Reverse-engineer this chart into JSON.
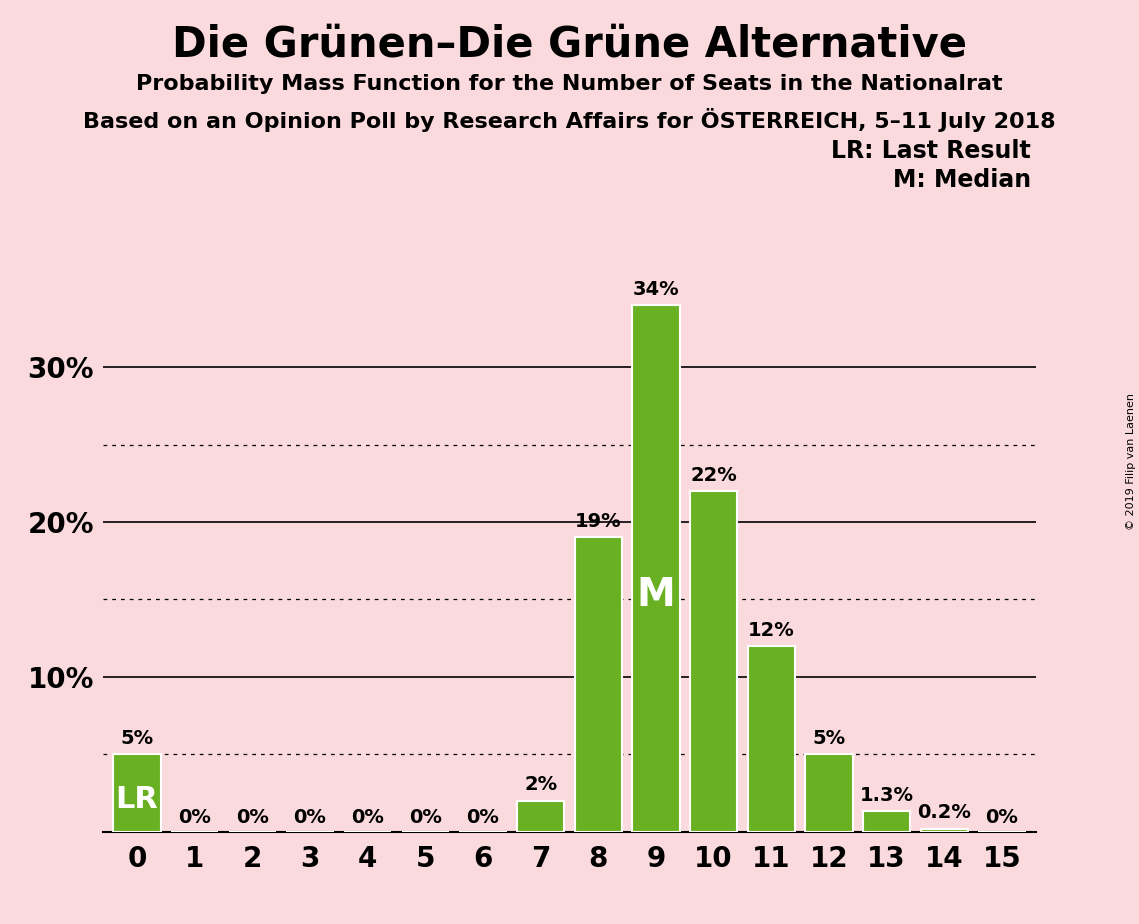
{
  "title": "Die Grünen–Die Grüne Alternative",
  "subtitle1": "Probability Mass Function for the Number of Seats in the Nationalrat",
  "subtitle2": "Based on an Opinion Poll by Research Affairs for ÖSTERREICH, 5–11 July 2018",
  "copyright": "© 2019 Filip van Laenen",
  "legend_lr": "LR: Last Result",
  "legend_m": "M: Median",
  "background_color": "#fadadd",
  "bar_color": "#6ab023",
  "bar_edge_color": "#ffffff",
  "categories": [
    0,
    1,
    2,
    3,
    4,
    5,
    6,
    7,
    8,
    9,
    10,
    11,
    12,
    13,
    14,
    15
  ],
  "values": [
    5,
    0,
    0,
    0,
    0,
    0,
    0,
    2,
    19,
    34,
    22,
    12,
    5,
    1.3,
    0.2,
    0
  ],
  "labels": [
    "5%",
    "0%",
    "0%",
    "0%",
    "0%",
    "0%",
    "0%",
    "2%",
    "19%",
    "34%",
    "22%",
    "12%",
    "5%",
    "1.3%",
    "0.2%",
    "0%"
  ],
  "lr_bar": 0,
  "median_bar": 9,
  "ylim": [
    0,
    37
  ],
  "solid_yticks": [
    10,
    20,
    30
  ],
  "dotted_yticks": [
    5,
    15,
    25
  ],
  "title_fontsize": 30,
  "subtitle_fontsize": 16,
  "label_fontsize": 14,
  "tick_fontsize": 20,
  "lr_fontsize": 22,
  "m_fontsize": 28,
  "bar_width": 0.82
}
